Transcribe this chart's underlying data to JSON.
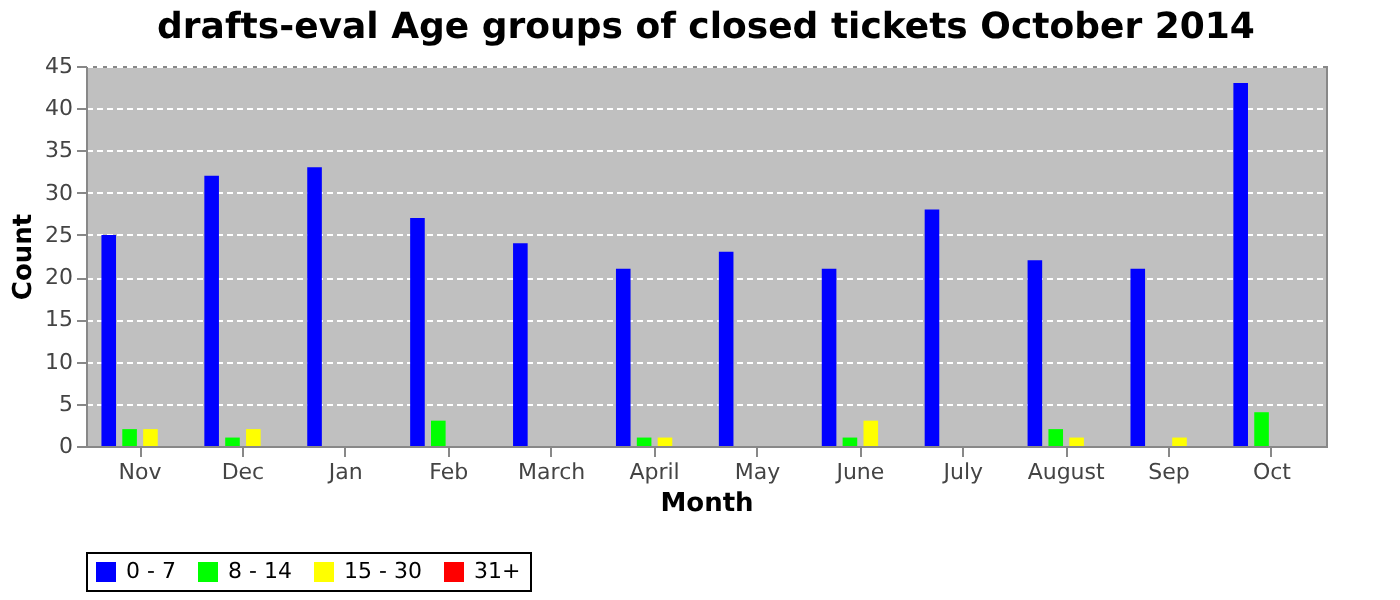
{
  "chart_data": {
    "type": "bar",
    "title": "drafts-eval Age groups of closed tickets October 2014",
    "xlabel": "Month",
    "ylabel": "Count",
    "categories": [
      "Nov",
      "Dec",
      "Jan",
      "Feb",
      "March",
      "April",
      "May",
      "June",
      "July",
      "August",
      "Sep",
      "Oct"
    ],
    "series": [
      {
        "name": "0 - 7",
        "color": "#0000ff",
        "values": [
          25,
          32,
          33,
          27,
          24,
          21,
          23,
          21,
          28,
          22,
          21,
          43
        ]
      },
      {
        "name": "8 - 14",
        "color": "#00ff00",
        "values": [
          2,
          1,
          0,
          3,
          0,
          1,
          0,
          1,
          0,
          2,
          0,
          4
        ]
      },
      {
        "name": "15 - 30",
        "color": "#ffff00",
        "values": [
          2,
          2,
          0,
          0,
          0,
          1,
          0,
          3,
          0,
          1,
          1,
          0
        ]
      },
      {
        "name": "31+",
        "color": "#ff0000",
        "values": [
          0,
          0,
          0,
          0,
          0,
          0,
          0,
          0,
          0,
          0,
          0,
          0
        ]
      }
    ],
    "ylim": [
      0,
      45
    ],
    "yticks": [
      0,
      5,
      10,
      15,
      20,
      25,
      30,
      35,
      40,
      45
    ],
    "grid": "y",
    "legend": "bottom"
  }
}
